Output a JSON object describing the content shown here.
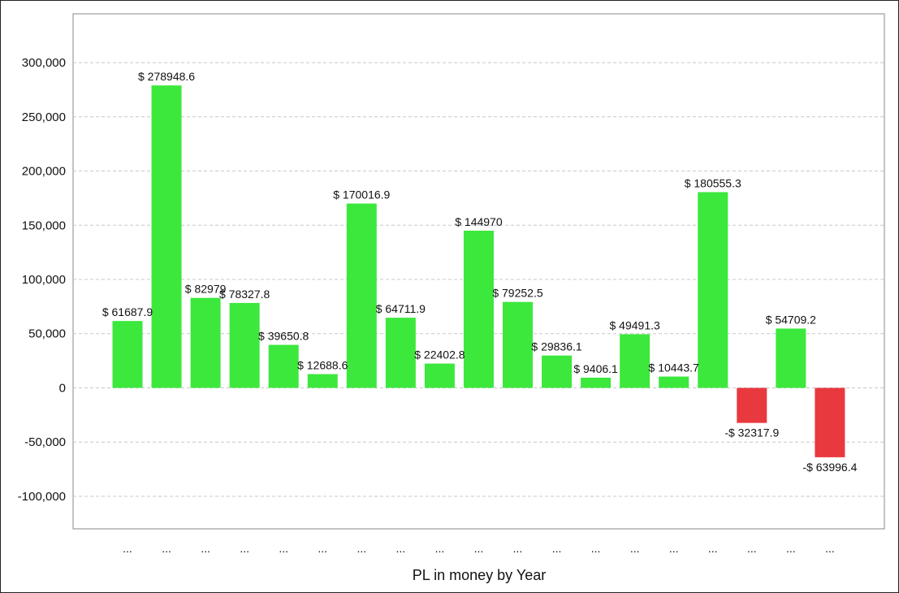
{
  "colors": {
    "positive": "#3ce83c",
    "negative": "#e8393f",
    "grid": "#c8c8c8",
    "axis": "#888888"
  },
  "chart_data": {
    "type": "bar",
    "xlabel": "PL in money by Year",
    "ylabel": "",
    "ylim": [
      -130000,
      345000
    ],
    "yticks": [
      300000,
      250000,
      200000,
      150000,
      100000,
      50000,
      0,
      -50000,
      -100000
    ],
    "ytick_labels": [
      "300,000",
      "250,000",
      "200,000",
      "150,000",
      "100,000",
      "50,000",
      "0",
      "-50,000",
      "-100,000"
    ],
    "grid": "horizontal dashed",
    "categories": [
      "...",
      "...",
      "...",
      "...",
      "...",
      "...",
      "...",
      "...",
      "...",
      "...",
      "...",
      "...",
      "...",
      "...",
      "...",
      "...",
      "...",
      "...",
      "..."
    ],
    "values": [
      61687.9,
      278948.6,
      82979,
      78327.8,
      39650.8,
      12688.6,
      170016.9,
      64711.9,
      22402.8,
      144970,
      79252.5,
      29836.1,
      9406.1,
      49491.3,
      10443.7,
      180555.3,
      -32317.9,
      54709.2,
      -63996.4
    ],
    "data_labels": [
      "$ 61687.9",
      "$ 278948.6",
      "$ 82979",
      "$ 78327.8",
      "$ 39650.8",
      "$ 12688.6",
      "$ 170016.9",
      "$ 64711.9",
      "$ 22402.8",
      "$ 144970",
      "$ 79252.5",
      "$ 29836.1",
      "$ 9406.1",
      "$ 49491.3",
      "$ 10443.7",
      "$ 180555.3",
      "-$ 32317.9",
      "$ 54709.2",
      "-$ 63996.4"
    ]
  }
}
